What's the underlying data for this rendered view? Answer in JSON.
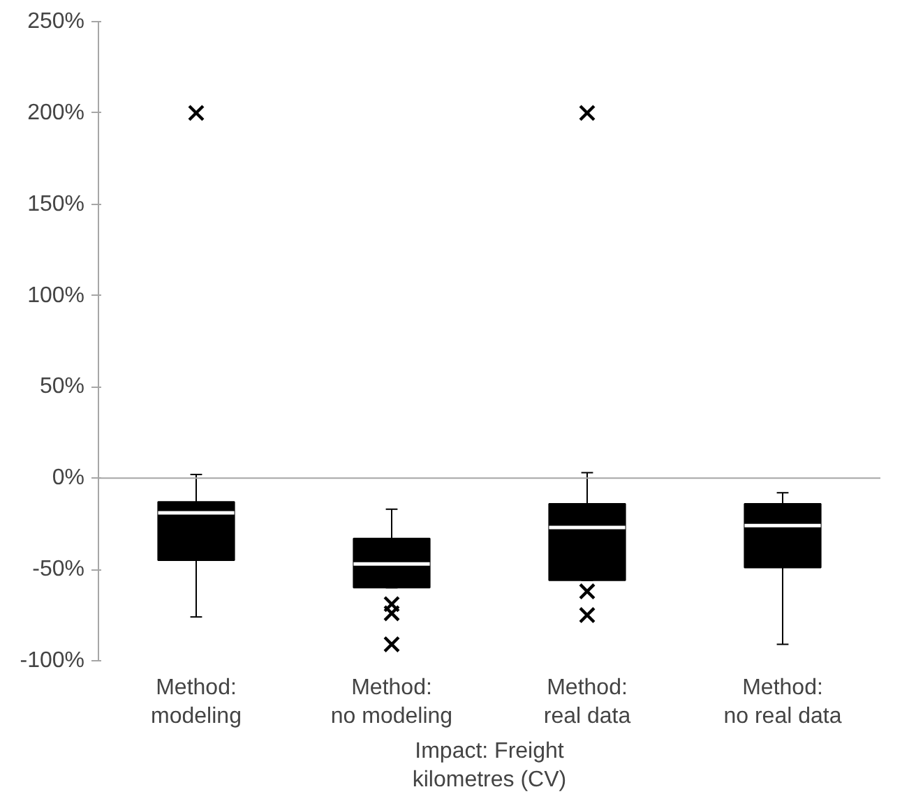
{
  "chart_data": {
    "type": "box",
    "xlabel": "Impact: Freight\nkilometres (CV)",
    "categories": [
      "Method:\nmodeling",
      "Method:\nno modeling",
      "Method:\nreal data",
      "Method:\nno real data"
    ],
    "boxes": [
      {
        "low": -76,
        "q1": -45,
        "median": -19,
        "q3": -13,
        "high": 2,
        "outliers": [
          200
        ]
      },
      {
        "low": -60,
        "q1": -60,
        "median": -47,
        "q3": -33,
        "high": -17,
        "outliers": [
          -69,
          -74,
          -91
        ]
      },
      {
        "low": -56,
        "q1": -56,
        "median": -27,
        "q3": -14,
        "high": 3,
        "outliers": [
          200,
          -62,
          -75
        ]
      },
      {
        "low": -91,
        "q1": -49,
        "median": -26,
        "q3": -14,
        "high": -8
      }
    ],
    "color": "#000000",
    "marker": "cross",
    "ylim": [
      -100,
      250
    ],
    "yticks": [
      {
        "value": -100,
        "label": "-100%"
      },
      {
        "value": -50,
        "label": "-50%"
      },
      {
        "value": 0,
        "label": "0%"
      },
      {
        "value": 50,
        "label": "50%"
      },
      {
        "value": 100,
        "label": "100%"
      },
      {
        "value": 150,
        "label": "150%"
      },
      {
        "value": 200,
        "label": "200%"
      },
      {
        "value": 250,
        "label": "250%"
      }
    ],
    "ref_lines": [
      {
        "axis": "y",
        "value": 0,
        "color": "#a6a6a6"
      }
    ]
  }
}
